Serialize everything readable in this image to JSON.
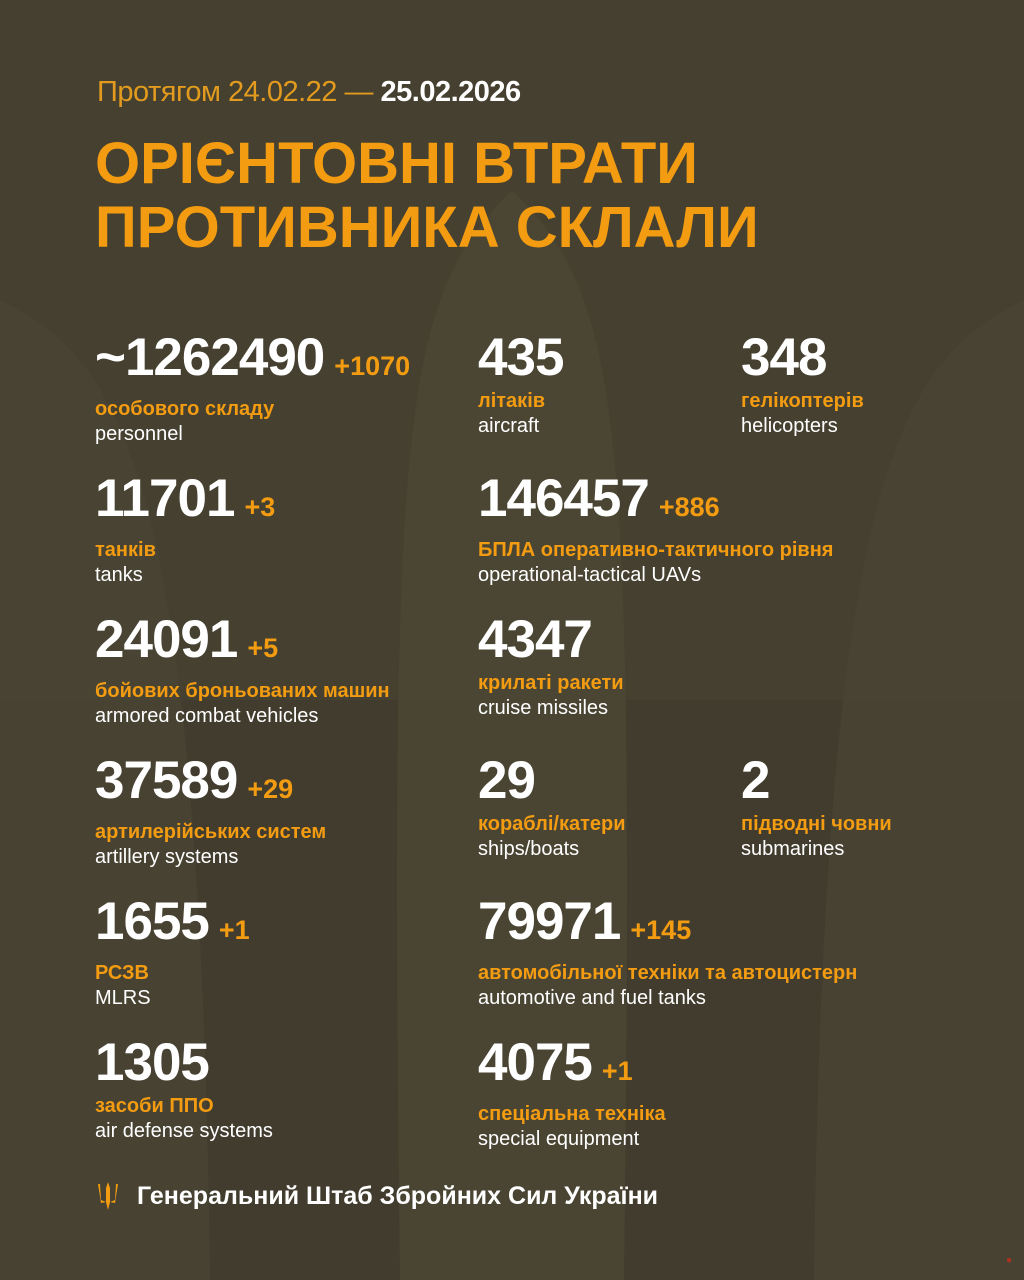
{
  "period": {
    "prefix": "Протягом 24.02.22 —",
    "date": "25.02.2026"
  },
  "title": {
    "line1": "ОРІЄНТОВНІ ВТРАТИ",
    "line2": "ПРОТИВНИКА СКЛАЛИ"
  },
  "items": [
    {
      "value": "~1262490",
      "delta": "+1070",
      "ua": "особового складу",
      "en": "personnel"
    },
    {
      "value": "435",
      "delta": "",
      "ua": "літаків",
      "en": "aircraft"
    },
    {
      "value": "348",
      "delta": "",
      "ua": "гелікоптерів",
      "en": "helicopters"
    },
    {
      "value": "11701",
      "delta": "+3",
      "ua": "танків",
      "en": "tanks"
    },
    {
      "value": "146457",
      "delta": "+886",
      "ua": "БПЛА оперативно-тактичного рівня",
      "en": "operational-tactical UAVs"
    },
    {
      "value": "24091",
      "delta": "+5",
      "ua": "бойових броньованих машин",
      "en": "armored combat vehicles"
    },
    {
      "value": "4347",
      "delta": "",
      "ua": "крилаті ракети",
      "en": "cruise missiles"
    },
    {
      "value": "37589",
      "delta": "+29",
      "ua": "артилерійських систем",
      "en": "artillery systems"
    },
    {
      "value": "29",
      "delta": "",
      "ua": "кораблі/катери",
      "en": "ships/boats"
    },
    {
      "value": "2",
      "delta": "",
      "ua": "підводні човни",
      "en": "submarines"
    },
    {
      "value": "1655",
      "delta": "+1",
      "ua": "РСЗВ",
      "en": "MLRS"
    },
    {
      "value": "79971",
      "delta": "+145",
      "ua": "автомобільної техніки та автоцистерн",
      "en": "automotive and fuel tanks"
    },
    {
      "value": "1305",
      "delta": "",
      "ua": "засоби ППО",
      "en": "air defense systems"
    },
    {
      "value": "4075",
      "delta": "+1",
      "ua": "спеціальна техніка",
      "en": "special equipment"
    }
  ],
  "footer": {
    "text": "Генеральний Штаб Збройних Сил України",
    "icon": "trident-icon"
  },
  "colors": {
    "background": "#45402f",
    "accent": "#f39c12",
    "text": "#ffffff"
  }
}
